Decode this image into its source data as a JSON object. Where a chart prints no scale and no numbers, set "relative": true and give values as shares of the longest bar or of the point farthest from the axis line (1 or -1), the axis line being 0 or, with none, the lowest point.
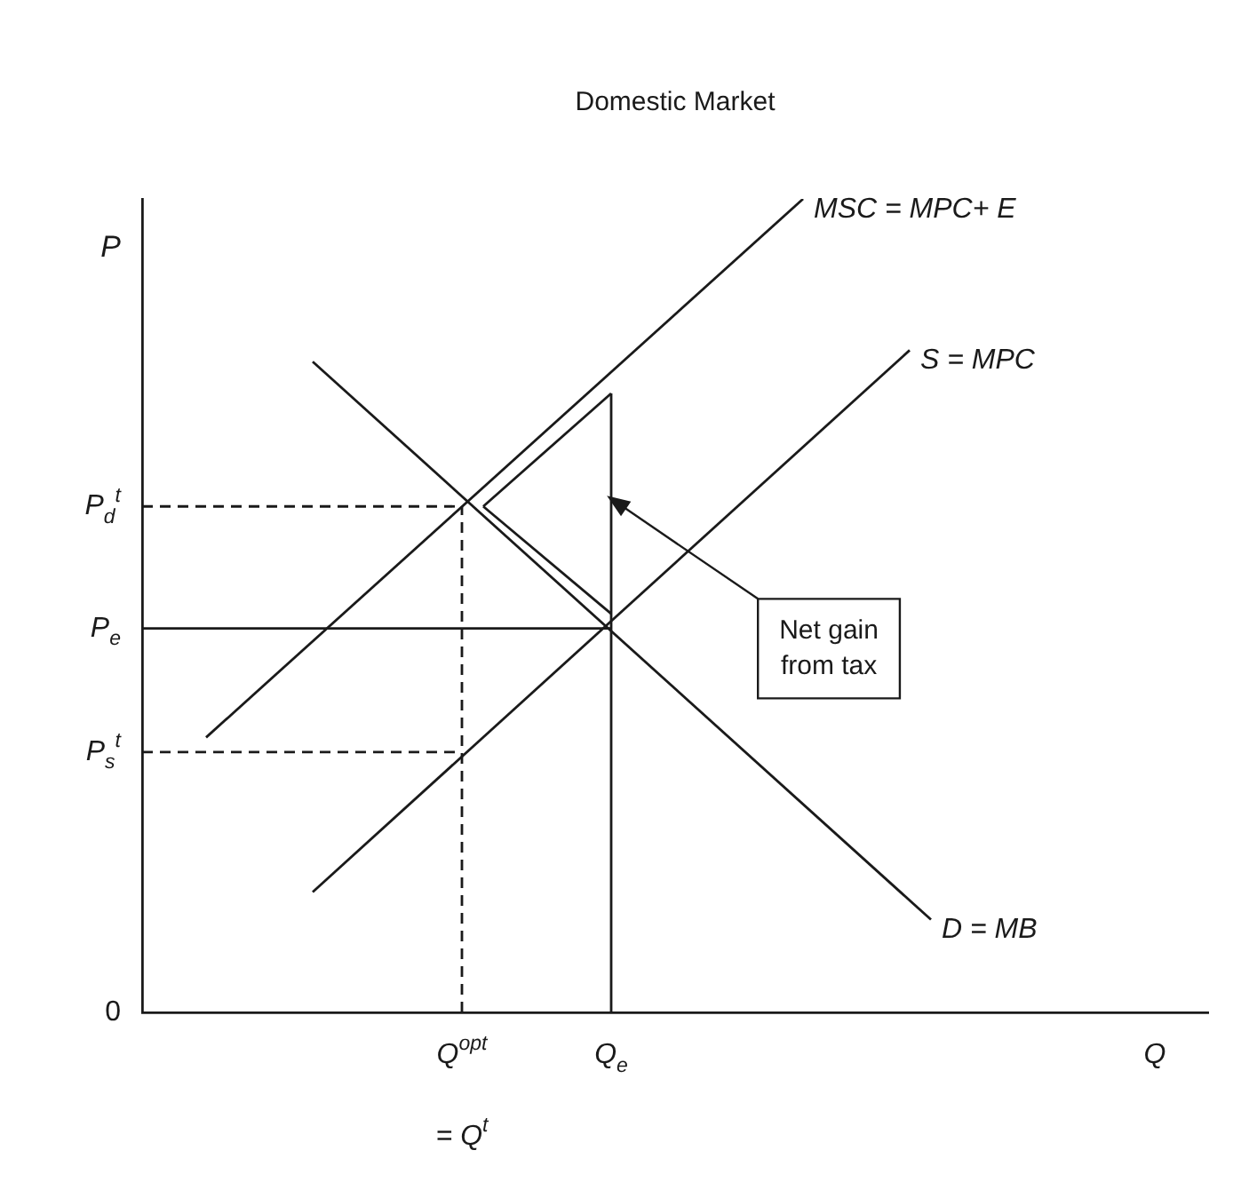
{
  "chart_data": {
    "type": "line",
    "title": "Domestic Market",
    "xlabel": "Q",
    "ylabel": "P",
    "relative": true,
    "legend": false,
    "marker": "none",
    "grid": false,
    "categories": [
      null,
      null,
      null,
      null,
      null,
      null,
      null,
      null,
      null,
      null,
      null,
      null,
      null,
      null,
      null,
      "Q$^{opt}$",
      null,
      null,
      null,
      null,
      null,
      null,
      "Q$_{e}$",
      null,
      null,
      null,
      null,
      null,
      null,
      null,
      null,
      null,
      null,
      null,
      null,
      null,
      null,
      null,
      null,
      null,
      null,
      null,
      null,
      null,
      null,
      null,
      null,
      null,
      null,
      null,
      null
    ],
    "series": [
      {
        "name": "MSC = MPC+ E",
        "color": "#1a1a1a",
        "values": [
          null,
          null,
          null,
          0.338,
          null,
          null,
          null,
          null,
          null,
          null,
          null,
          null,
          null,
          null,
          null,
          null,
          null,
          null,
          null,
          null,
          null,
          null,
          null,
          null,
          null,
          null,
          null,
          null,
          null,
          null,
          null,
          1,
          null,
          null,
          null,
          null,
          null,
          null,
          null,
          null,
          null,
          null,
          null,
          null,
          null,
          null,
          null,
          null,
          null,
          null,
          null
        ]
      },
      {
        "name": "S = MPC",
        "color": "#1a1a1a",
        "values": [
          null,
          null,
          null,
          null,
          null,
          null,
          null,
          null,
          0.148,
          null,
          null,
          null,
          null,
          null,
          null,
          null,
          null,
          null,
          null,
          null,
          null,
          null,
          null,
          null,
          null,
          null,
          null,
          null,
          null,
          null,
          null,
          null,
          null,
          null,
          null,
          null,
          0.814,
          null,
          null,
          null,
          null,
          null,
          null,
          null,
          null,
          null,
          null,
          null,
          null,
          null,
          null
        ]
      },
      {
        "name": "D = MB",
        "color": "#1a1a1a",
        "values": [
          null,
          null,
          null,
          null,
          null,
          null,
          null,
          null,
          0.8,
          null,
          null,
          null,
          null,
          null,
          null,
          null,
          null,
          null,
          null,
          null,
          null,
          null,
          null,
          null,
          null,
          null,
          null,
          null,
          null,
          null,
          null,
          null,
          null,
          null,
          null,
          null,
          null,
          0.114,
          null,
          null,
          null,
          null,
          null,
          null,
          null,
          null,
          null,
          null,
          null,
          null,
          null
        ]
      },
      {
        "name": "P$_{e}$",
        "color": "#1a1a1a",
        "values": [
          0.472,
          null,
          null,
          null,
          null,
          null,
          null,
          null,
          null,
          null,
          null,
          null,
          null,
          null,
          null,
          null,
          null,
          null,
          null,
          null,
          null,
          null,
          0.472,
          null,
          null,
          null,
          null,
          null,
          null,
          null,
          null,
          null,
          null,
          null,
          null,
          null,
          null,
          null,
          null,
          null,
          null,
          null,
          null,
          null,
          null,
          null,
          null,
          null,
          null,
          null,
          null
        ]
      },
      {
        "name": "P$_{d}$$^{t}$",
        "color": "#1a1a1a",
        "line_style": "dashed",
        "values": [
          0.622,
          null,
          null,
          null,
          null,
          null,
          null,
          null,
          null,
          null,
          null,
          null,
          null,
          null,
          null,
          0.622,
          null,
          null,
          null,
          null,
          null,
          null,
          null,
          null,
          null,
          null,
          null,
          null,
          null,
          null,
          null,
          null,
          null,
          null,
          null,
          null,
          null,
          null,
          null,
          null,
          null,
          null,
          null,
          null,
          null,
          null,
          null,
          null,
          null,
          null,
          null
        ]
      },
      {
        "name": "P$_{s}$$^{t}$",
        "color": "#1a1a1a",
        "line_style": "dashed",
        "values": [
          0.32,
          null,
          null,
          null,
          null,
          null,
          null,
          null,
          null,
          null,
          null,
          null,
          null,
          null,
          null,
          0.32,
          null,
          null,
          null,
          null,
          null,
          null,
          null,
          null,
          null,
          null,
          null,
          null,
          null,
          null,
          null,
          null,
          null,
          null,
          null,
          null,
          null,
          null,
          null,
          null,
          null,
          null,
          null,
          null,
          null,
          null,
          null,
          null,
          null,
          null,
          null
        ]
      },
      {
        "color": "#1a1a1a",
        "values": [
          null,
          null,
          null,
          null,
          null,
          null,
          null,
          null,
          null,
          null,
          null,
          null,
          null,
          null,
          null,
          null,
          0.622,
          null,
          null,
          null,
          null,
          null,
          0.761,
          null,
          null,
          null,
          null,
          null,
          null,
          null,
          null,
          null,
          null,
          null,
          null,
          null,
          null,
          null,
          null,
          null,
          null,
          null,
          null,
          null,
          null,
          null,
          null,
          null,
          null,
          null,
          null
        ]
      },
      {
        "color": "#1a1a1a",
        "values": [
          null,
          null,
          null,
          null,
          null,
          null,
          null,
          null,
          null,
          null,
          null,
          null,
          null,
          null,
          null,
          null,
          0.622,
          null,
          null,
          null,
          null,
          null,
          0.49,
          null,
          null,
          null,
          null,
          null,
          null,
          null,
          null,
          null,
          null,
          null,
          null,
          null,
          null,
          null,
          null,
          null,
          null,
          null,
          null,
          null,
          null,
          null,
          null,
          null,
          null,
          null,
          null
        ]
      }
    ],
    "ref_lines": [
      {
        "axis": "x",
        "value": "Q$^{opt}$",
        "line_style": "dashed",
        "color": "#1a1a1a"
      },
      {
        "axis": "x",
        "value": "Q$_{e}$",
        "color": "#1a1a1a"
      }
    ],
    "annotations": [
      "0",
      "Net gain from tax",
      "= Q$^{t}$"
    ]
  }
}
